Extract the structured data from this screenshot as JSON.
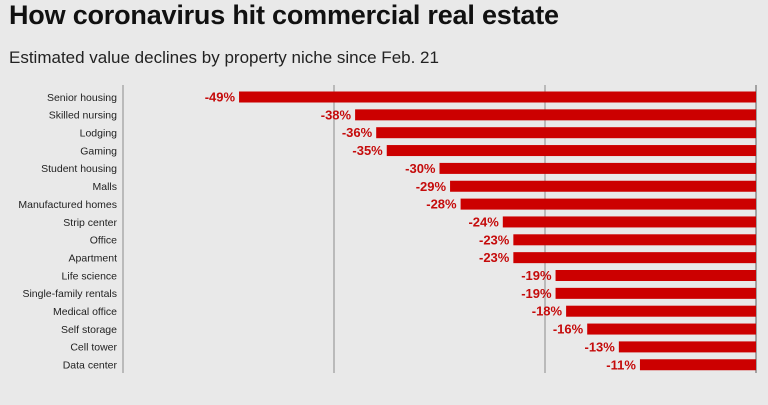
{
  "title": "How coronavirus hit commercial real estate",
  "subtitle": "Estimated value declines by property niche since Feb. 21",
  "colors": {
    "bar": "#cc0000",
    "label": "#c50b0b",
    "grid": "#8a8a8a",
    "background": "#e9e9e9"
  },
  "chart_data": {
    "type": "bar",
    "orientation": "horizontal",
    "categories": [
      "Senior housing",
      "Skilled nursing",
      "Lodging",
      "Gaming",
      "Student housing",
      "Malls",
      "Manufactured homes",
      "Strip center",
      "Office",
      "Apartment",
      "Life science",
      "Single-family rentals",
      "Medical office",
      "Self storage",
      "Cell tower",
      "Data center"
    ],
    "values": [
      -49,
      -38,
      -36,
      -35,
      -30,
      -29,
      -28,
      -24,
      -23,
      -23,
      -19,
      -19,
      -18,
      -16,
      -13,
      -11
    ],
    "value_labels": [
      "-49%",
      "-38%",
      "-36%",
      "-35%",
      "-30%",
      "-29%",
      "-28%",
      "-24%",
      "-23%",
      "-23%",
      "-19%",
      "-19%",
      "-18%",
      "-16%",
      "-13%",
      "-11%"
    ],
    "xlim": [
      -60,
      0
    ],
    "grid": true,
    "title": "How coronavirus hit commercial real estate",
    "subtitle": "Estimated value declines by property niche since Feb. 21",
    "xlabel": "",
    "ylabel": ""
  }
}
